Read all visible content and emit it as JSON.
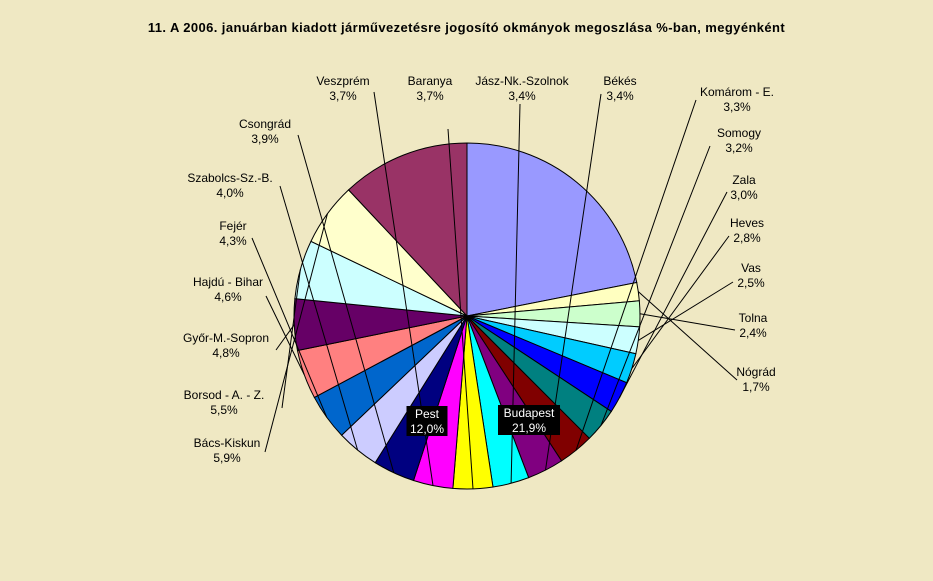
{
  "chart_data": {
    "type": "pie",
    "title": "11. A  2006. januárban  kiadott járművezetésre  jogosító okmányok megoszlása %-ban,  megyénként",
    "slices": [
      {
        "label": "Budapest",
        "value": 21.9,
        "display": "21,9%",
        "color": "#9999FF"
      },
      {
        "label": "Nógrád",
        "value": 1.7,
        "display": "1,7%",
        "color": "#FFFFC0"
      },
      {
        "label": "Tolna",
        "value": 2.4,
        "display": "2,4%",
        "color": "#CCFFCC"
      },
      {
        "label": "Vas",
        "value": 2.5,
        "display": "2,5%",
        "color": "#CCFFFF"
      },
      {
        "label": "Heves",
        "value": 2.8,
        "display": "2,8%",
        "color": "#00CCFF"
      },
      {
        "label": "Zala",
        "value": 3.0,
        "display": "3,0%",
        "color": "#0000FF"
      },
      {
        "label": "Somogy",
        "value": 3.2,
        "display": "3,2%",
        "color": "#008080"
      },
      {
        "label": "Komárom - E.",
        "value": 3.3,
        "display": "3,3%",
        "color": "#800000"
      },
      {
        "label": "Békés",
        "value": 3.4,
        "display": "3,4%",
        "color": "#800080"
      },
      {
        "label": "Jász-Nk.-Szolnok",
        "value": 3.4,
        "display": "3,4%",
        "color": "#00FFFF"
      },
      {
        "label": "Baranya",
        "value": 3.7,
        "display": "3,7%",
        "color": "#FFFF00"
      },
      {
        "label": "Veszprém",
        "value": 3.7,
        "display": "3,7%",
        "color": "#FF00FF"
      },
      {
        "label": "Csongrád",
        "value": 3.9,
        "display": "3,9%",
        "color": "#000080"
      },
      {
        "label": "Szabolcs-Sz.-B.",
        "value": 4.0,
        "display": "4,0%",
        "color": "#CCCCFF"
      },
      {
        "label": "Fejér",
        "value": 4.3,
        "display": "4,3%",
        "color": "#0066CC"
      },
      {
        "label": "Hajdú - Bihar",
        "value": 4.6,
        "display": "4,6%",
        "color": "#FF8080"
      },
      {
        "label": "Győr-M.-Sopron",
        "value": 4.8,
        "display": "4,8%",
        "color": "#660066"
      },
      {
        "label": "Borsod - A. - Z.",
        "value": 5.5,
        "display": "5,5%",
        "color": "#CCFFFF"
      },
      {
        "label": "Bács-Kiskun",
        "value": 5.9,
        "display": "5,9%",
        "color": "#FFFFCC"
      },
      {
        "label": "Pest",
        "value": 12.0,
        "display": "12,0%",
        "color": "#993366"
      }
    ]
  }
}
